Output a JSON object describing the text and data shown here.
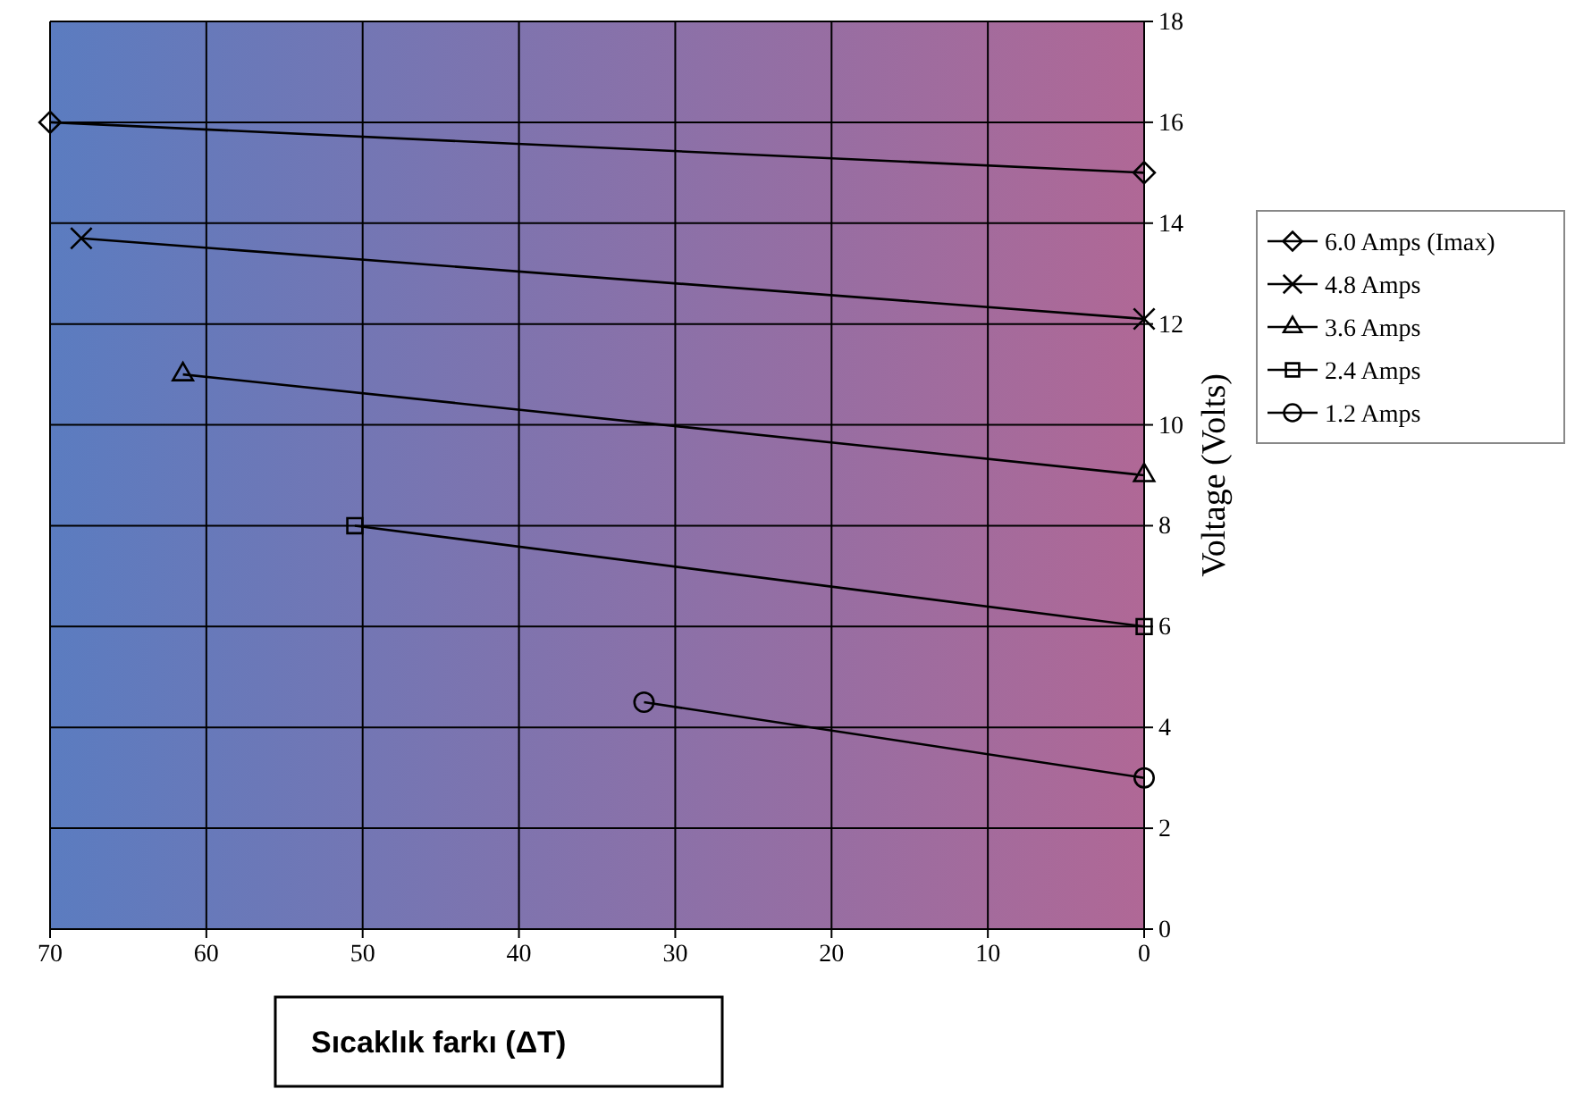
{
  "chart_data": {
    "type": "line",
    "xlabel": "Sıcaklık farkı (ΔT)",
    "ylabel": "Voltage (Volts)",
    "xlim": [
      70,
      0
    ],
    "xticks": [
      70,
      60,
      50,
      40,
      30,
      20,
      10,
      0
    ],
    "ylim": [
      0,
      18
    ],
    "yticks": [
      0,
      2,
      4,
      6,
      8,
      10,
      12,
      14,
      16,
      18
    ],
    "grid": true,
    "legend": "right",
    "series": [
      {
        "name": "6.0 Amps (Imax)",
        "color": "#000000",
        "marker": "diamond",
        "x": [
          70,
          0
        ],
        "values": [
          16,
          15
        ]
      },
      {
        "name": "4.8 Amps",
        "color": "#000000",
        "marker": "cross",
        "x": [
          68,
          0
        ],
        "values": [
          13.7,
          12.1
        ]
      },
      {
        "name": "3.6 Amps",
        "color": "#000000",
        "marker": "triangle",
        "x": [
          61.5,
          0
        ],
        "values": [
          11,
          9
        ]
      },
      {
        "name": "2.4 Amps",
        "color": "#000000",
        "marker": "square",
        "x": [
          50.5,
          0
        ],
        "values": [
          8,
          6
        ]
      },
      {
        "name": "1.2 Amps",
        "color": "#000000",
        "marker": "circle",
        "x": [
          32,
          0
        ],
        "values": [
          4.5,
          3
        ]
      }
    ]
  }
}
